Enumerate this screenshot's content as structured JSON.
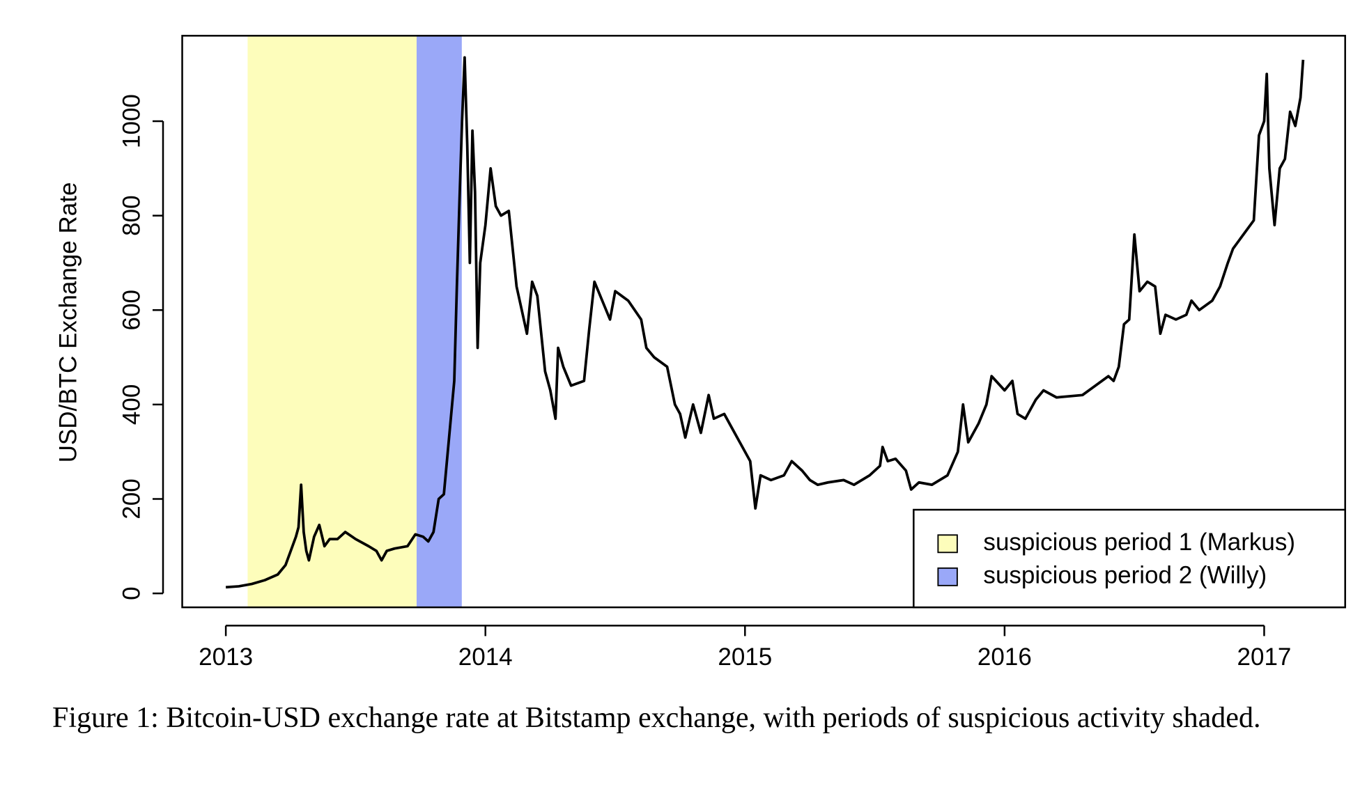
{
  "chart_data": {
    "type": "line",
    "ylabel": "USD/BTC Exchange Rate",
    "caption": "Figure 1: Bitcoin-USD exchange rate at Bitstamp exchange, with periods of suspicious activity shaded.",
    "xlim": [
      2012.832,
      2017.312
    ],
    "xticks": [
      2013,
      2014,
      2015,
      2016,
      2017
    ],
    "ylim": [
      -29.5,
      1181
    ],
    "yticks": [
      0,
      200,
      400,
      600,
      800,
      1000
    ],
    "color": "#000000",
    "legend": "bottomright",
    "regions": [
      {
        "name": "suspicious period 1 (Markus)",
        "color": "#fdfdbb",
        "x": [
          2013.084,
          2013.735
        ]
      },
      {
        "name": "suspicious period 2 (Willy)",
        "color": "#9aa8f8",
        "x": [
          2013.735,
          2013.909
        ]
      }
    ],
    "x": [
      2013.0,
      2013.05,
      2013.1,
      2013.15,
      2013.2,
      2013.23,
      2013.25,
      2013.27,
      2013.28,
      2013.29,
      2013.3,
      2013.31,
      2013.32,
      2013.34,
      2013.36,
      2013.38,
      2013.4,
      2013.43,
      2013.46,
      2013.5,
      2013.55,
      2013.58,
      2013.6,
      2013.62,
      2013.65,
      2013.7,
      2013.73,
      2013.76,
      2013.78,
      2013.8,
      2013.82,
      2013.84,
      2013.86,
      2013.88,
      2013.89,
      2013.9,
      2013.91,
      2013.92,
      2013.93,
      2013.94,
      2013.95,
      2013.96,
      2013.97,
      2013.98,
      2014.0,
      2014.02,
      2014.04,
      2014.06,
      2014.09,
      2014.12,
      2014.14,
      2014.16,
      2014.18,
      2014.2,
      2014.23,
      2014.25,
      2014.27,
      2014.28,
      2014.3,
      2014.33,
      2014.38,
      2014.4,
      2014.42,
      2014.45,
      2014.48,
      2014.5,
      2014.55,
      2014.6,
      2014.62,
      2014.65,
      2014.7,
      2014.73,
      2014.75,
      2014.77,
      2014.8,
      2014.83,
      2014.86,
      2014.88,
      2014.92,
      2014.95,
      2014.98,
      2015.02,
      2015.04,
      2015.06,
      2015.1,
      2015.15,
      2015.18,
      2015.22,
      2015.25,
      2015.28,
      2015.32,
      2015.38,
      2015.42,
      2015.48,
      2015.52,
      2015.53,
      2015.55,
      2015.58,
      2015.62,
      2015.64,
      2015.67,
      2015.72,
      2015.78,
      2015.82,
      2015.84,
      2015.86,
      2015.9,
      2015.93,
      2015.95,
      2016.0,
      2016.03,
      2016.05,
      2016.08,
      2016.12,
      2016.15,
      2016.2,
      2016.3,
      2016.35,
      2016.4,
      2016.42,
      2016.44,
      2016.46,
      2016.48,
      2016.5,
      2016.52,
      2016.55,
      2016.58,
      2016.6,
      2016.62,
      2016.66,
      2016.7,
      2016.72,
      2016.75,
      2016.8,
      2016.83,
      2016.86,
      2016.88,
      2016.92,
      2016.96,
      2016.98,
      2017.0,
      2017.01,
      2017.02,
      2017.04,
      2017.06,
      2017.08,
      2017.1,
      2017.12,
      2017.14,
      2017.15
    ],
    "values": [
      13,
      15,
      20,
      28,
      40,
      60,
      90,
      120,
      140,
      230,
      130,
      90,
      70,
      120,
      145,
      100,
      115,
      115,
      130,
      115,
      100,
      90,
      70,
      90,
      95,
      100,
      125,
      120,
      110,
      130,
      200,
      210,
      330,
      450,
      650,
      830,
      1000,
      1135,
      950,
      700,
      980,
      850,
      520,
      700,
      780,
      900,
      820,
      800,
      810,
      650,
      600,
      550,
      660,
      630,
      470,
      430,
      370,
      520,
      480,
      440,
      450,
      560,
      660,
      620,
      580,
      640,
      620,
      580,
      520,
      500,
      480,
      400,
      380,
      330,
      400,
      340,
      420,
      370,
      380,
      350,
      320,
      280,
      180,
      250,
      240,
      250,
      280,
      260,
      240,
      230,
      235,
      240,
      230,
      250,
      270,
      310,
      280,
      285,
      260,
      220,
      235,
      230,
      250,
      300,
      400,
      320,
      360,
      400,
      460,
      430,
      450,
      380,
      370,
      410,
      430,
      415,
      420,
      440,
      460,
      450,
      480,
      570,
      580,
      760,
      640,
      660,
      650,
      550,
      590,
      580,
      590,
      620,
      600,
      620,
      650,
      700,
      730,
      760,
      790,
      970,
      1000,
      1100,
      900,
      780,
      900,
      920,
      1020,
      990,
      1050,
      1130
    ]
  }
}
